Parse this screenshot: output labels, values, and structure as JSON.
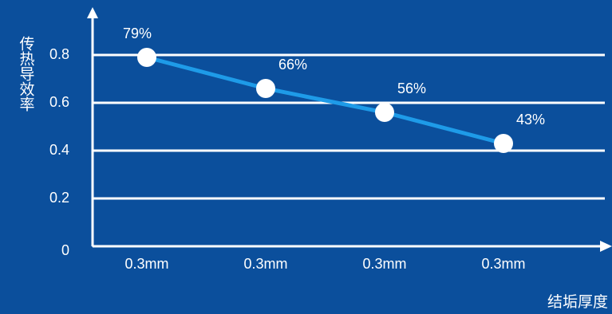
{
  "chart_data": {
    "type": "line",
    "y_label": "传热导效率",
    "x_label": "结垢厚度",
    "categories": [
      "0.3mm",
      "0.3mm",
      "0.3mm",
      "0.3mm"
    ],
    "values": [
      0.79,
      0.66,
      0.56,
      0.43
    ],
    "value_labels": [
      "79%",
      "66%",
      "56%",
      "43%"
    ],
    "color": "#1e9be8",
    "ylim": [
      0,
      1
    ],
    "yticks": [
      0,
      0.2,
      0.4,
      0.6,
      0.8
    ],
    "grid": true
  }
}
